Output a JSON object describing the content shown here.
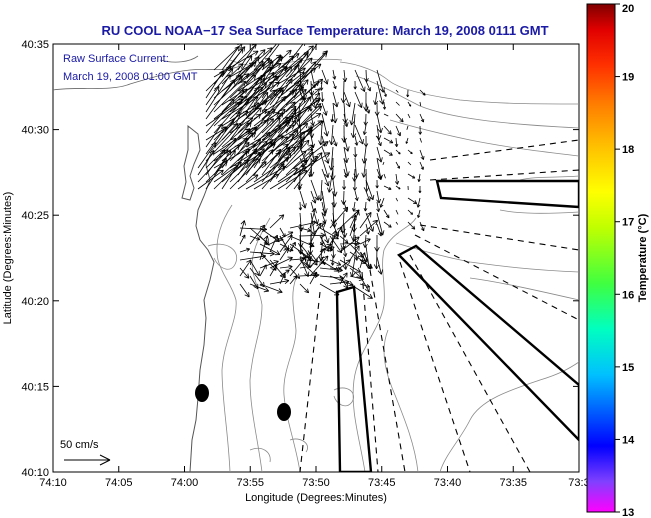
{
  "title": "RU COOL  NOAA−17 Sea Surface Temperature:  March 19, 2008 0111 GMT",
  "annotation": {
    "line1": "Raw Surface Current:",
    "line2": "March 19, 2008 01:00 GMT"
  },
  "scale_label": "50 cm/s",
  "axes": {
    "xlabel": "Longitude (Degrees:Minutes)",
    "ylabel": "Latitude (Degrees:Minutes)",
    "xticks": [
      "74:10",
      "74:05",
      "74:00",
      "73:55",
      "73:50",
      "73:45",
      "73:40",
      "73:35",
      "73:3"
    ],
    "yticks": [
      "40:35",
      "40:30",
      "40:25",
      "40:20",
      "40:15",
      "40:10"
    ]
  },
  "colorbar": {
    "label": "Temperature (°C)",
    "ticks": [
      "20",
      "19",
      "18",
      "17",
      "16",
      "15",
      "14",
      "13"
    ],
    "range": [
      13,
      20
    ],
    "colors": [
      "#ff00ff",
      "#8040ff",
      "#0000ff",
      "#00c0ff",
      "#00ffc0",
      "#40ff40",
      "#c0ff00",
      "#ffff00",
      "#ffc000",
      "#ff8000",
      "#ff3000",
      "#e00000",
      "#800000"
    ]
  }
}
